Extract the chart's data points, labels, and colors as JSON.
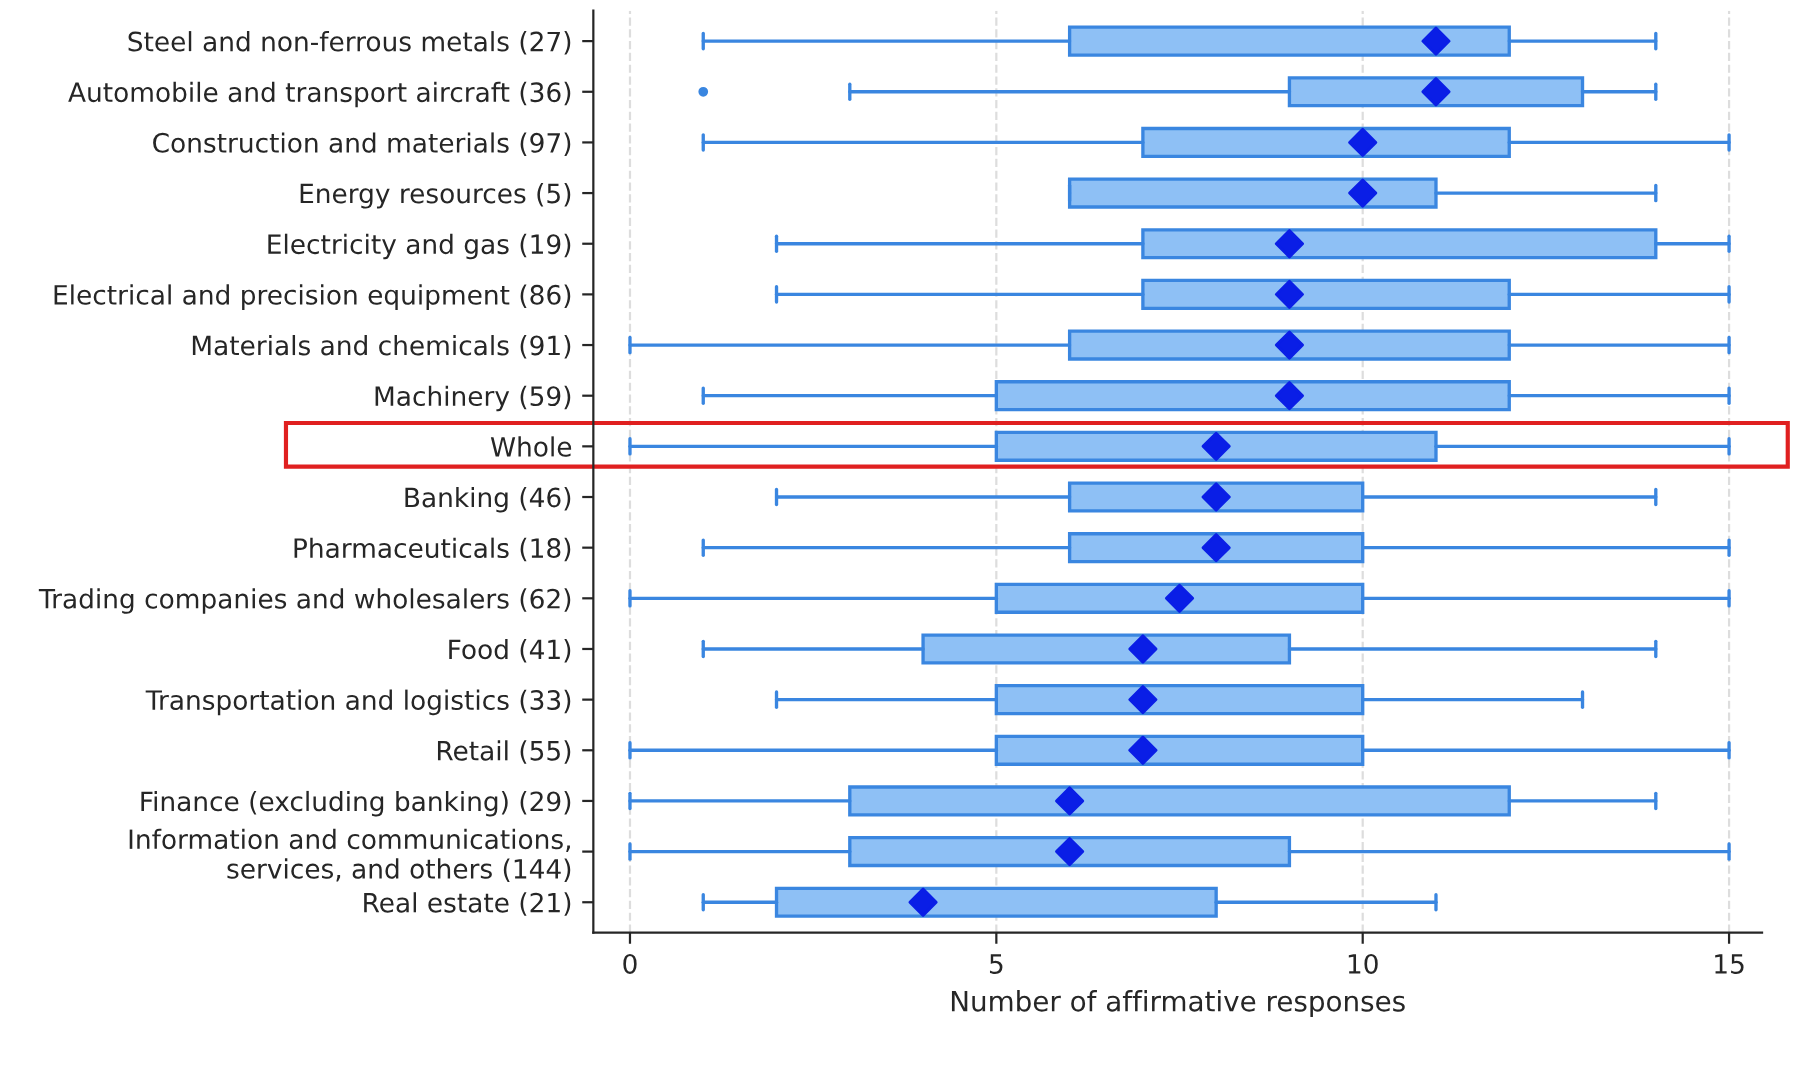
{
  "chart_data": {
    "type": "box",
    "orientation": "horizontal",
    "xlabel": "Number of affirmative responses",
    "categories": [
      "Steel and non-ferrous metals (27)",
      "Automobile and transport aircraft (36)",
      "Construction and materials (97)",
      "Energy resources (5)",
      "Electricity and gas (19)",
      "Electrical and precision equipment (86)",
      "Materials and chemicals (91)",
      "Machinery (59)",
      "Whole",
      "Banking (46)",
      "Pharmaceuticals (18)",
      "Trading companies and wholesalers (62)",
      "Food (41)",
      "Transportation and logistics (33)",
      "Retail (55)",
      "Finance (excluding banking) (29)",
      "Information and communications,\nservices, and others (144)",
      "Real estate (21)"
    ],
    "boxes": [
      {
        "low": 1,
        "q1": 6,
        "median": 11,
        "q3": 12,
        "high": 14
      },
      {
        "low": 3,
        "q1": 9,
        "median": 11,
        "q3": 13,
        "high": 14,
        "outliers": [
          1
        ]
      },
      {
        "low": 1,
        "q1": 7,
        "median": 10,
        "q3": 12,
        "high": 15
      },
      {
        "low": 6,
        "q1": 6,
        "median": 10,
        "q3": 11,
        "high": 14
      },
      {
        "low": 2,
        "q1": 7,
        "median": 9,
        "q3": 14,
        "high": 15
      },
      {
        "low": 2,
        "q1": 7,
        "median": 9,
        "q3": 12,
        "high": 15
      },
      {
        "low": 0,
        "q1": 6,
        "median": 9,
        "q3": 12,
        "high": 15
      },
      {
        "low": 1,
        "q1": 5,
        "median": 9,
        "q3": 12,
        "high": 15
      },
      {
        "low": 0,
        "q1": 5,
        "median": 8,
        "q3": 11,
        "high": 15
      },
      {
        "low": 2,
        "q1": 6,
        "median": 8,
        "q3": 10,
        "high": 14
      },
      {
        "low": 1,
        "q1": 6,
        "median": 8,
        "q3": 10,
        "high": 15
      },
      {
        "low": 0,
        "q1": 5,
        "median": 7.5,
        "q3": 10,
        "high": 15
      },
      {
        "low": 1,
        "q1": 4,
        "median": 7,
        "q3": 9,
        "high": 14
      },
      {
        "low": 2,
        "q1": 5,
        "median": 7,
        "q3": 10,
        "high": 13
      },
      {
        "low": 0,
        "q1": 5,
        "median": 7,
        "q3": 10,
        "high": 15
      },
      {
        "low": 0,
        "q1": 3,
        "median": 6,
        "q3": 12,
        "high": 14
      },
      {
        "low": 0,
        "q1": 3,
        "median": 6,
        "q3": 9,
        "high": 15
      },
      {
        "low": 1,
        "q1": 2,
        "median": 4,
        "q3": 8,
        "high": 11
      }
    ],
    "color": "#8ec0f5",
    "xlim": [
      -0.5,
      15.45
    ],
    "xticks": [
      0,
      5,
      10,
      15
    ],
    "grid": "x"
  }
}
